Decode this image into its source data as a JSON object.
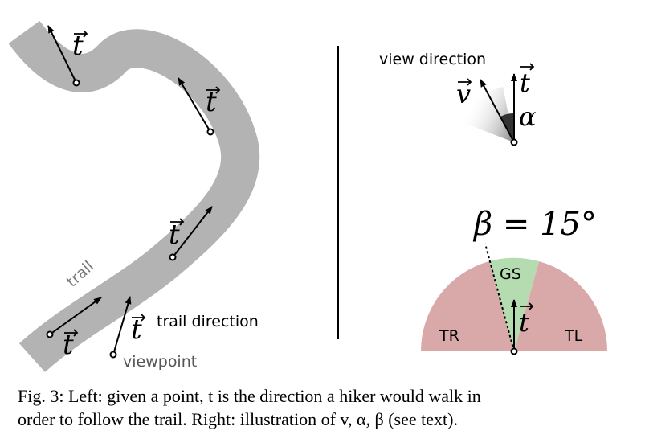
{
  "left_panel": {
    "trail_label": "trail",
    "vector_label": "t",
    "trail_direction_label": "trail direction",
    "viewpoint_label": "viewpoint"
  },
  "right_top": {
    "view_direction_label": "view direction",
    "v_label": "v",
    "t_label": "t",
    "alpha_label": "α"
  },
  "right_bottom": {
    "beta_label": "β = 15°",
    "gs_label": "GS",
    "tr_label": "TR",
    "tl_label": "TL",
    "t_label": "t",
    "beta_degrees": 15
  },
  "colors": {
    "trail": "#b3b3b3",
    "gs_region": "#b5dbb0",
    "side_region": "#d9a9a9",
    "ink": "#000000"
  },
  "caption": {
    "line1": "Fig. 3: Left: given a point, t is the direction a hiker would walk in",
    "line2": "order to follow the trail. Right: illustration of v, α, β (see text)."
  }
}
